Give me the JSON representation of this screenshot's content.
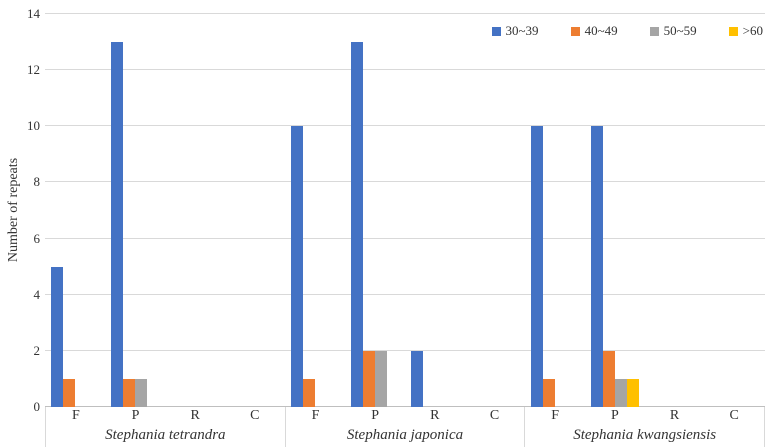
{
  "chart_data": {
    "type": "bar",
    "title": "",
    "ylabel": "Number of repeats",
    "xlabel": "",
    "ylim": [
      0,
      14
    ],
    "yticks": [
      0,
      2,
      4,
      6,
      8,
      10,
      12,
      14
    ],
    "grid": true,
    "legend_position": "top-right",
    "series": [
      {
        "name": "30~39",
        "color": "#4472C4"
      },
      {
        "name": "40~49",
        "color": "#ED7D31"
      },
      {
        "name": "50~59",
        "color": "#A5A5A5"
      },
      {
        "name": ">60",
        "color": "#FFC000"
      }
    ],
    "groups": [
      {
        "label": "Stephania tetrandra",
        "categories": [
          {
            "label": "F",
            "values": [
              5,
              1,
              0,
              0
            ]
          },
          {
            "label": "P",
            "values": [
              13,
              1,
              1,
              0
            ]
          },
          {
            "label": "R",
            "values": [
              0,
              0,
              0,
              0
            ]
          },
          {
            "label": "C",
            "values": [
              0,
              0,
              0,
              0
            ]
          }
        ]
      },
      {
        "label": "Stephania japonica",
        "categories": [
          {
            "label": "F",
            "values": [
              10,
              1,
              0,
              0
            ]
          },
          {
            "label": "P",
            "values": [
              13,
              2,
              2,
              0
            ]
          },
          {
            "label": "R",
            "values": [
              2,
              0,
              0,
              0
            ]
          },
          {
            "label": "C",
            "values": [
              0,
              0,
              0,
              0
            ]
          }
        ]
      },
      {
        "label": "Stephania kwangsiensis",
        "categories": [
          {
            "label": "F",
            "values": [
              10,
              1,
              0,
              0
            ]
          },
          {
            "label": "P",
            "values": [
              10,
              2,
              1,
              1
            ]
          },
          {
            "label": "R",
            "values": [
              0,
              0,
              0,
              0
            ]
          },
          {
            "label": "C",
            "values": [
              0,
              0,
              0,
              0
            ]
          }
        ]
      }
    ]
  },
  "colors": {
    "gridline": "#D9D9D9",
    "axis_line": "#BFBFBF",
    "text": "#333333",
    "background": "#FFFFFF"
  }
}
